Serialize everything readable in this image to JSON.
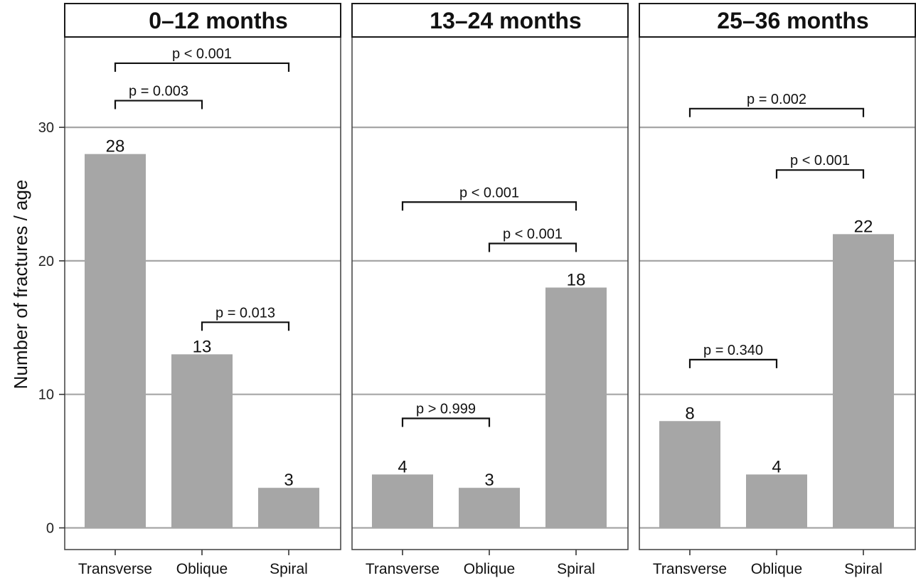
{
  "chart_data": {
    "type": "bar",
    "ylabel": "Number of fractures / age",
    "xlabel": "",
    "ylim": [
      -1.5,
      36.5
    ],
    "yticks": [
      0,
      10,
      20,
      30
    ],
    "grid": true,
    "bar_color": "#a6a6a6",
    "categories": [
      "Transverse",
      "Oblique",
      "Spiral"
    ],
    "panels": [
      {
        "title": "0–12 months",
        "values": [
          28,
          13,
          3
        ],
        "comparisons": [
          {
            "from": 0,
            "to": 2,
            "y": 34.8,
            "label": "p < 0.001"
          },
          {
            "from": 0,
            "to": 1,
            "y": 32.0,
            "label": "p = 0.003"
          },
          {
            "from": 1,
            "to": 2,
            "y": 15.4,
            "label": "p = 0.013"
          }
        ]
      },
      {
        "title": "13–24 months",
        "values": [
          4,
          3,
          18
        ],
        "comparisons": [
          {
            "from": 0,
            "to": 2,
            "y": 24.4,
            "label": "p < 0.001"
          },
          {
            "from": 1,
            "to": 2,
            "y": 21.3,
            "label": "p < 0.001"
          },
          {
            "from": 0,
            "to": 1,
            "y": 8.2,
            "label": "p > 0.999"
          }
        ]
      },
      {
        "title": "25–36 months",
        "values": [
          8,
          4,
          22
        ],
        "comparisons": [
          {
            "from": 0,
            "to": 2,
            "y": 31.4,
            "label": "p = 0.002"
          },
          {
            "from": 1,
            "to": 2,
            "y": 26.8,
            "label": "p < 0.001"
          },
          {
            "from": 0,
            "to": 1,
            "y": 12.6,
            "label": "p = 0.340"
          }
        ]
      }
    ]
  }
}
